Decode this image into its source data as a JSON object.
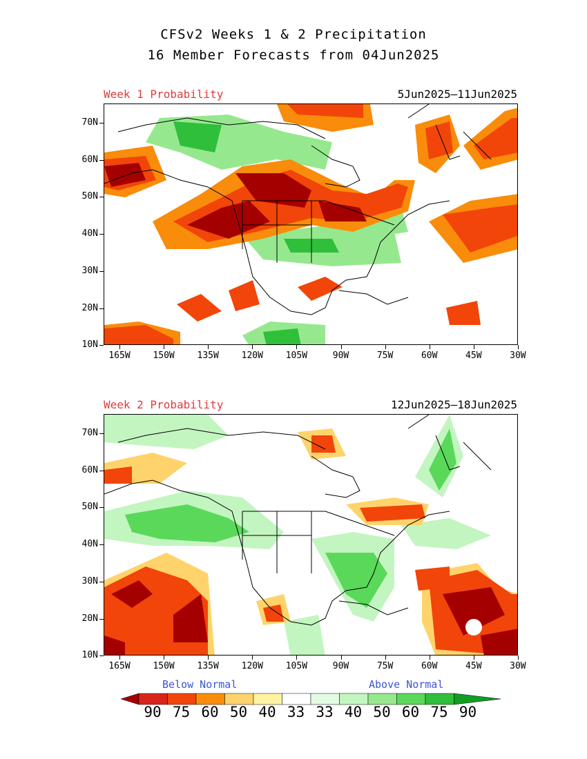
{
  "title": {
    "line1": "CFSv2 Weeks 1 & 2 Precipitation",
    "line2": "16 Member Forecasts from 04Jun2025"
  },
  "panels": [
    {
      "label": "Week 1 Probability",
      "dates": "5Jun2025—11Jun2025"
    },
    {
      "label": "Week 2 Probability",
      "dates": "12Jun2025—18Jun2025"
    }
  ],
  "lat_labels": [
    "70N",
    "60N",
    "50N",
    "40N",
    "30N",
    "20N",
    "10N"
  ],
  "lon_labels": [
    "165W",
    "150W",
    "135W",
    "120W",
    "105W",
    "90W",
    "75W",
    "60W",
    "45W",
    "30W"
  ],
  "legend": {
    "below_label": "Below Normal",
    "above_label": "Above Normal",
    "numbers": [
      "90",
      "75",
      "60",
      "50",
      "40",
      "33",
      "33",
      "40",
      "50",
      "60",
      "75",
      "90"
    ],
    "colors": [
      "#a50000",
      "#d9241c",
      "#f2450a",
      "#f98c0a",
      "#ffd36b",
      "#fff3a3",
      "#ffffff",
      "#e3fbe3",
      "#c3f5c0",
      "#96e88f",
      "#5ad85a",
      "#2fbf3a",
      "#119e22"
    ]
  }
}
